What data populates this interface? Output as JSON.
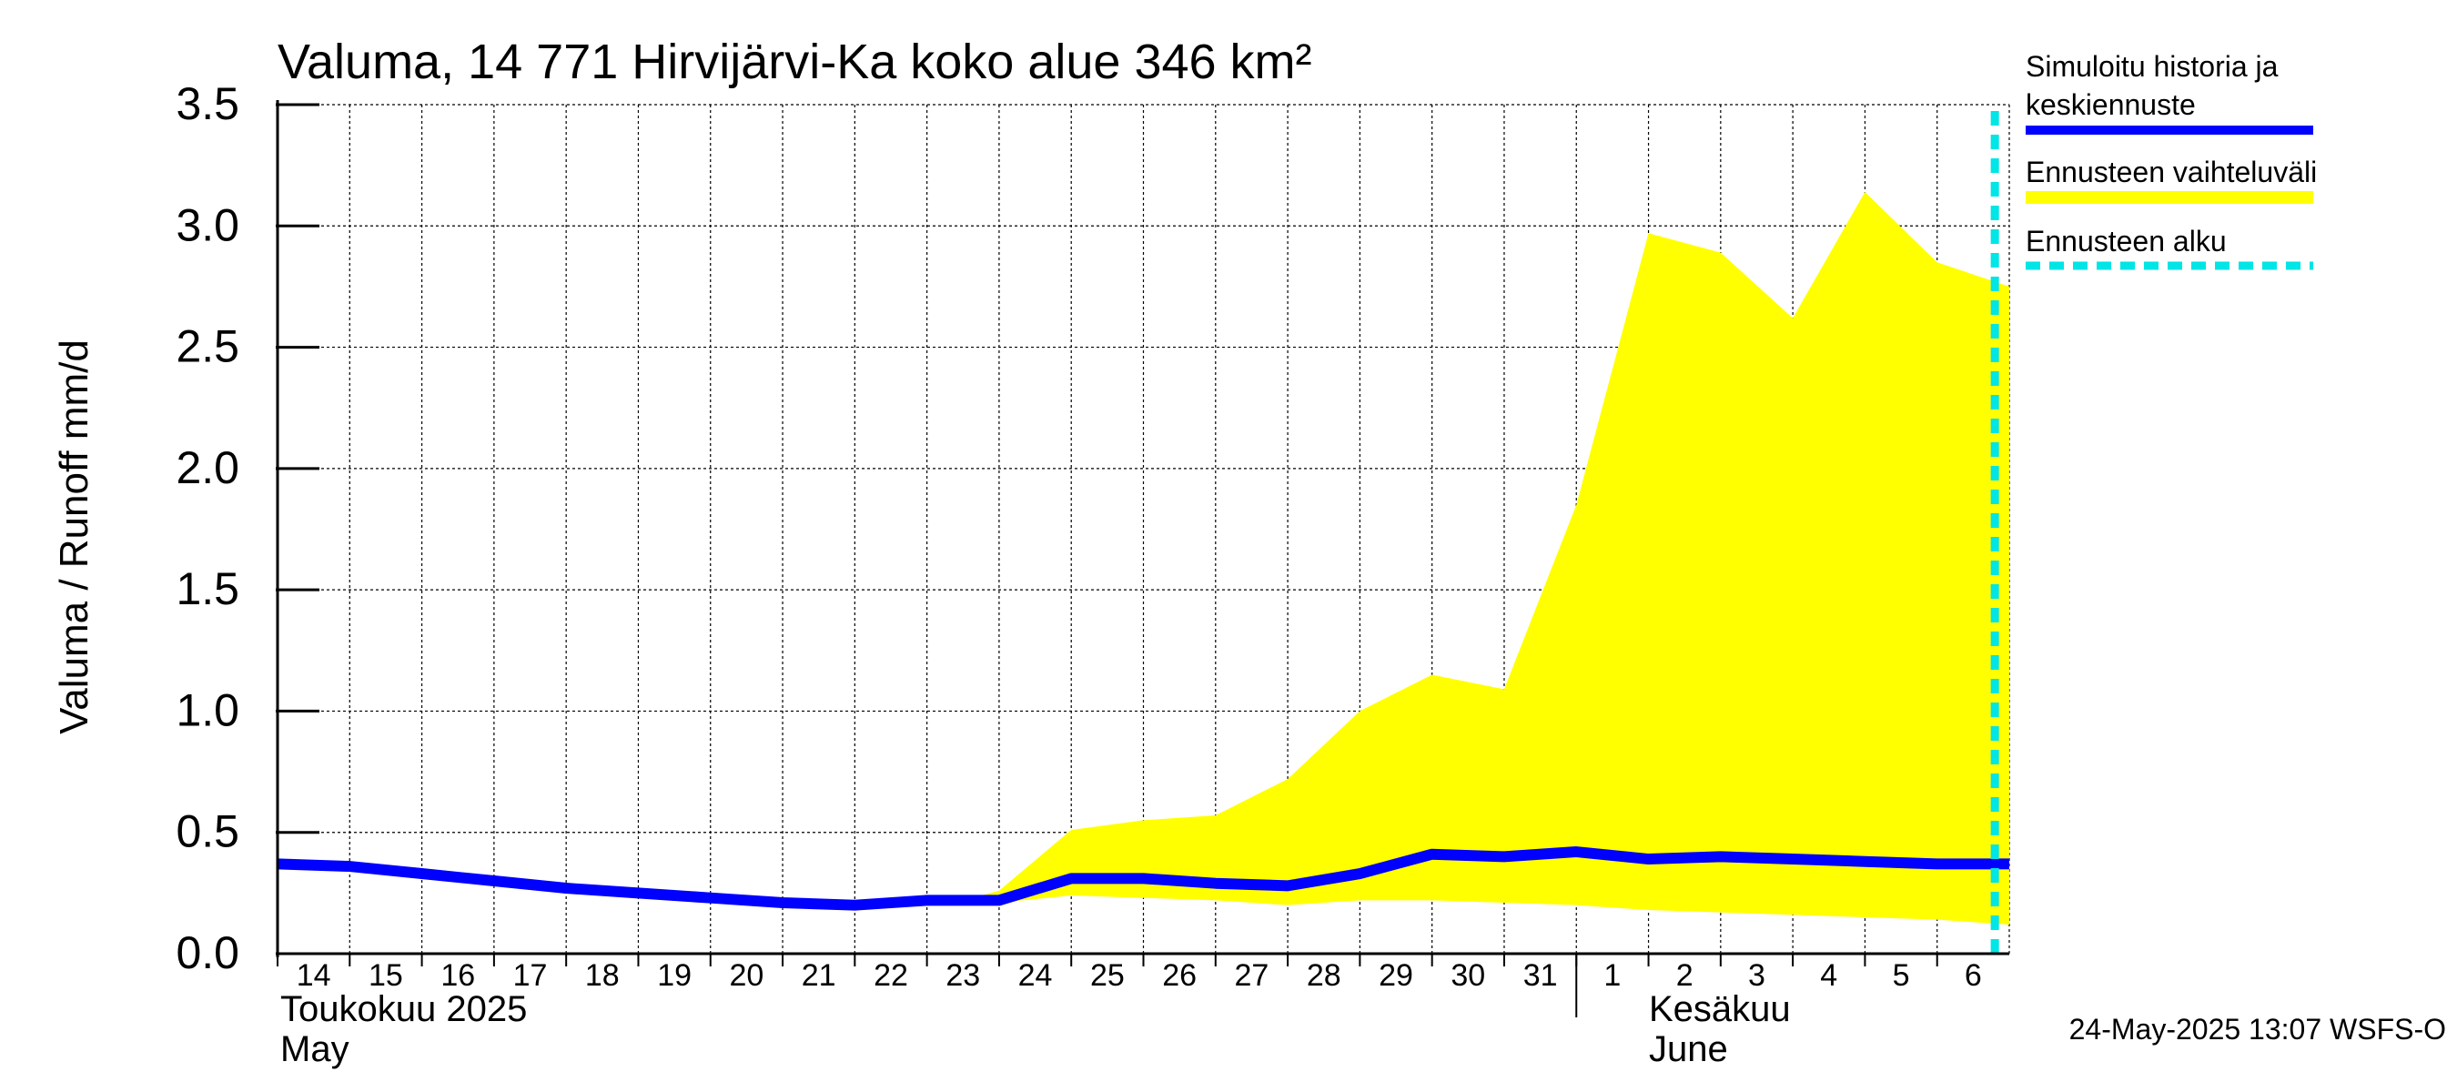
{
  "chart_data": {
    "type": "area",
    "title": "Valuma, 14 771 Hirvijärvi-Ka koko alue 346 km²",
    "ylabel": "Valuma / Runoff     mm/d",
    "ylim": [
      0.0,
      3.5
    ],
    "yticks": [
      "0.0",
      "0.5",
      "1.0",
      "1.5",
      "2.0",
      "2.5",
      "3.0",
      "3.5"
    ],
    "x_day_labels": [
      "14",
      "15",
      "16",
      "17",
      "18",
      "19",
      "20",
      "21",
      "22",
      "23",
      "24",
      "25",
      "26",
      "27",
      "28",
      "29",
      "30",
      "31",
      "1",
      "2",
      "3",
      "4",
      "5",
      "6"
    ],
    "month_labels": [
      {
        "line1": "Toukokuu  2025",
        "line2": "May"
      },
      {
        "line1": "Kesäkuu",
        "line2": "June"
      }
    ],
    "forecast_start_day": 23.8,
    "series": [
      {
        "name": "Simuloitu historia ja keskiennuste",
        "color": "#0000ff",
        "x": [
          0,
          1,
          2,
          3,
          4,
          5,
          6,
          7,
          8,
          9,
          10,
          11,
          12,
          13,
          14,
          15,
          16,
          17,
          18,
          19,
          20,
          21,
          22,
          23,
          24
        ],
        "values": [
          0.37,
          0.36,
          0.33,
          0.3,
          0.27,
          0.25,
          0.23,
          0.21,
          0.2,
          0.22,
          0.22,
          0.31,
          0.31,
          0.29,
          0.28,
          0.33,
          0.41,
          0.4,
          0.42,
          0.39,
          0.4,
          0.39,
          0.38,
          0.37,
          0.37
        ]
      }
    ],
    "band": {
      "name": "Ennusteen vaihteluväli",
      "color": "#ffff00",
      "x": [
        9.5,
        10,
        11,
        12,
        13,
        14,
        15,
        16,
        17,
        18,
        19,
        20,
        21,
        22,
        23,
        24
      ],
      "upper": [
        0.22,
        0.26,
        0.51,
        0.55,
        0.57,
        0.72,
        1.0,
        1.15,
        1.09,
        1.85,
        2.97,
        2.89,
        2.62,
        3.14,
        2.85,
        2.75
      ],
      "lower": [
        0.22,
        0.21,
        0.24,
        0.23,
        0.22,
        0.2,
        0.22,
        0.22,
        0.21,
        0.2,
        0.18,
        0.17,
        0.16,
        0.15,
        0.14,
        0.12
      ]
    },
    "legend": {
      "mean_line1": "Simuloitu historia ja",
      "mean_line2": "keskiennuste",
      "band": "Ennusteen vaihteluväli",
      "start": "Ennusteen alku",
      "start_color": "#00e5e5"
    },
    "timestamp": "24-May-2025 13:07 WSFS-O"
  }
}
